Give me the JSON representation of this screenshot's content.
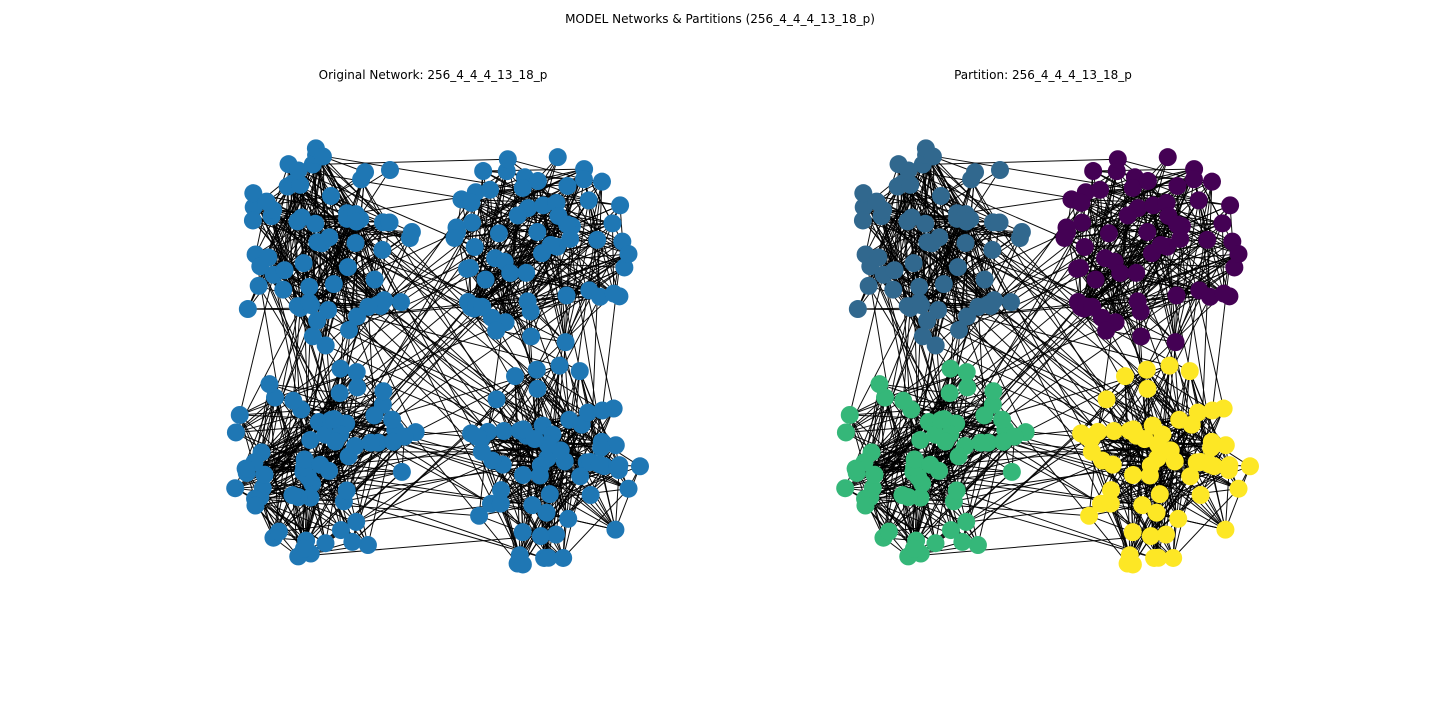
{
  "figure": {
    "suptitle": "MODEL Networks & Partitions (256_4_4_4_13_18_p)"
  },
  "panels": [
    {
      "id": "original",
      "title": "Original Network: 256_4_4_4_13_18_p"
    },
    {
      "id": "partition",
      "title": "Partition: 256_4_4_4_13_18_p"
    }
  ],
  "graph": {
    "node_count": 256,
    "communities": 4,
    "nodes_per_community": 64
  },
  "colors": {
    "original_node": "#1f77b4",
    "community_0": "#440154",
    "community_1": "#31688e",
    "community_2": "#35b779",
    "community_3": "#fde725",
    "edge": "#000000"
  },
  "chart_data": {
    "type": "network",
    "panels": [
      "original",
      "partition"
    ],
    "nodes": 256,
    "communities": [
      {
        "index": 0,
        "color": "#440154",
        "region": "top-right"
      },
      {
        "index": 1,
        "color": "#31688e",
        "region": "top-left"
      },
      {
        "index": 2,
        "color": "#35b779",
        "region": "bottom-left"
      },
      {
        "index": 3,
        "color": "#fde725",
        "region": "bottom-right"
      }
    ]
  }
}
